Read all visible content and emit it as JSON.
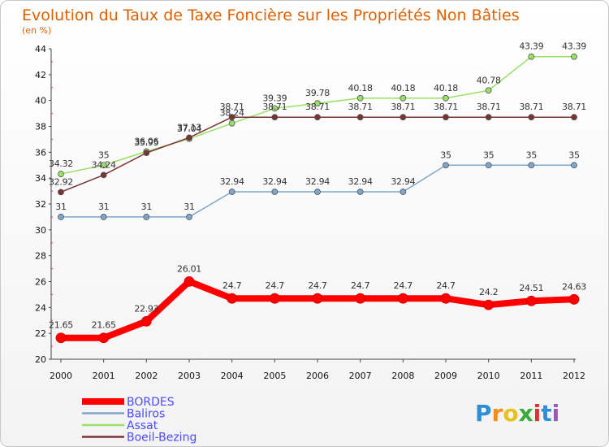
{
  "chart_data": {
    "type": "line",
    "title": "Evolution du Taux de Taxe Foncière sur les Propriétés Non Bâties",
    "subtitle": "(en %)",
    "x": [
      "2000",
      "2001",
      "2002",
      "2003",
      "2004",
      "2005",
      "2006",
      "2007",
      "2008",
      "2009",
      "2010",
      "2011",
      "2012"
    ],
    "ylim": [
      20,
      44
    ],
    "yticks": [
      20,
      22,
      24,
      26,
      28,
      30,
      32,
      34,
      36,
      38,
      40,
      42,
      44
    ],
    "grid": false,
    "legend_position": "bottom-left",
    "series": [
      {
        "name": "BORDES",
        "color": "#ff0000",
        "values": [
          21.65,
          21.65,
          22.93,
          26.01,
          24.7,
          24.7,
          24.7,
          24.7,
          24.7,
          24.7,
          24.2,
          24.51,
          24.63
        ],
        "labels": [
          "21.65",
          "21.65",
          "22.93",
          "26.01",
          "24.7",
          "24.7",
          "24.7",
          "24.7",
          "24.7",
          "24.7",
          "24.2",
          "24.51",
          "24.63"
        ]
      },
      {
        "name": "Baliros",
        "color": "#7fa7cc",
        "values": [
          31,
          31,
          31,
          31,
          32.94,
          32.94,
          32.94,
          32.94,
          32.94,
          35,
          35,
          35,
          35
        ],
        "labels": [
          "31",
          "31",
          "31",
          "31",
          "32.94",
          "32.94",
          "32.94",
          "32.94",
          "32.94",
          "35",
          "35",
          "35",
          "35"
        ]
      },
      {
        "name": "Assat",
        "color": "#99e066",
        "values": [
          34.32,
          35,
          36.06,
          37.04,
          38.24,
          39.39,
          39.78,
          40.18,
          40.18,
          40.18,
          40.78,
          43.39,
          43.39
        ],
        "labels": [
          "34.32",
          "35",
          "36.06",
          "37.04",
          "38.24",
          "39.39",
          "39.78",
          "40.18",
          "40.18",
          "40.18",
          "40.78",
          "43.39",
          "43.39"
        ]
      },
      {
        "name": "Boeil-Bezing",
        "color": "#7a3333",
        "values": [
          32.92,
          34.24,
          35.95,
          37.13,
          38.71,
          38.71,
          38.71,
          38.71,
          38.71,
          38.71,
          38.71,
          38.71,
          38.71
        ],
        "labels": [
          "32.92",
          "34.24",
          "35.95",
          "37.13",
          "38.71",
          "38.71",
          "38.71",
          "38.71",
          "38.71",
          "38.71",
          "38.71",
          "38.71",
          "38.71"
        ]
      }
    ]
  },
  "logo": {
    "text": "Proxiti",
    "letters": [
      "P",
      "r",
      "o",
      "x",
      "i",
      "t",
      "i"
    ],
    "colors": [
      "#2e8fd6",
      "#f28c1a",
      "#e8c21a",
      "#3aa83a",
      "#e03030",
      "#2e8fd6",
      "#9b59b6"
    ]
  }
}
